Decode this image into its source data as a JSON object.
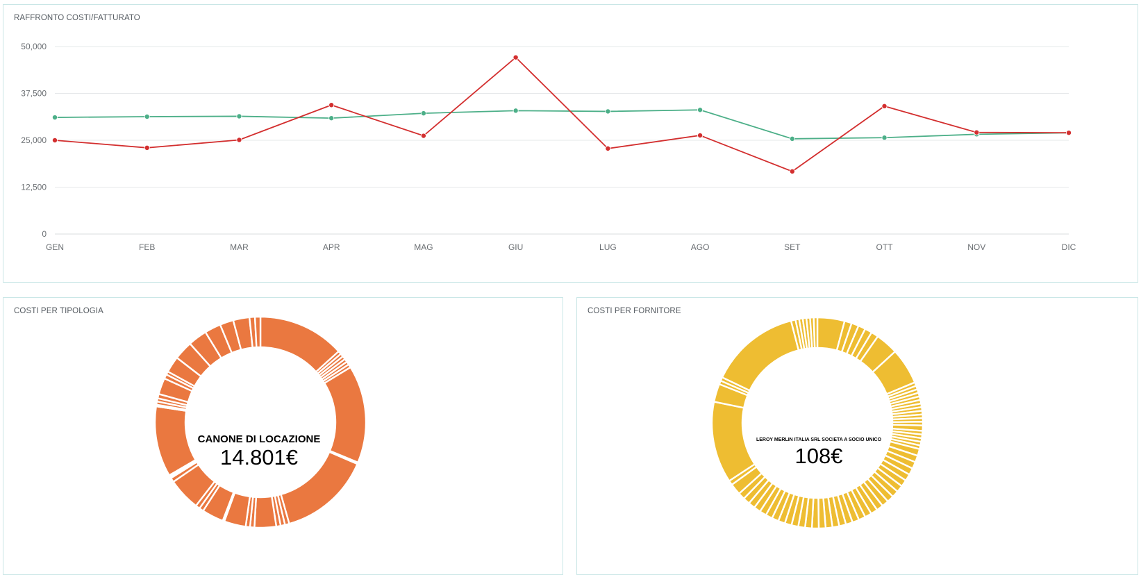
{
  "chart_data": [
    {
      "type": "line",
      "title": "RAFFRONTO COSTI/FATTURATO",
      "categories": [
        "GEN",
        "FEB",
        "MAR",
        "APR",
        "MAG",
        "GIU",
        "LUG",
        "AGO",
        "SET",
        "OTT",
        "NOV",
        "DIC"
      ],
      "y_ticks": [
        "0",
        "12,500",
        "25,000",
        "37,500",
        "50,000"
      ],
      "ylim": [
        0,
        50000
      ],
      "grid": true,
      "series": [
        {
          "color": "#4caf88",
          "values": [
            31100,
            31300,
            31400,
            30900,
            32200,
            32900,
            32700,
            33100,
            25400,
            25700,
            26600,
            27000
          ]
        },
        {
          "color": "#d32f2f",
          "values": [
            25000,
            23000,
            25100,
            34400,
            26200,
            47100,
            22800,
            26300,
            16700,
            34100,
            27100,
            27000
          ]
        }
      ]
    },
    {
      "type": "pie",
      "title": "COSTI PER TIPOLOGIA",
      "donut": true,
      "color": "#ea7840",
      "center_label": "CANONE DI LOCAZIONE",
      "center_value": "14.801€",
      "slice_sizes": [
        16,
        0.6,
        0.6,
        0.6,
        0.6,
        0.6,
        0.6,
        18,
        0.3,
        17,
        0.8,
        0.8,
        0.8,
        4,
        0.8,
        0.8,
        4,
        0.3,
        4,
        0.8,
        0.8,
        6,
        0.8,
        0.3,
        0.3,
        13,
        0.3,
        0.6,
        0.6,
        0.8,
        3,
        0.8,
        0.6,
        3,
        3.5,
        3.5,
        3,
        2.5,
        3,
        1,
        1
      ]
    },
    {
      "type": "pie",
      "title": "COSTI PER FORNITORE",
      "donut": true,
      "color": "#eebd32",
      "center_label": "LEROY MERLIN ITALIA SRL SOCIETA A SOCIO UNICO",
      "center_value": "108€",
      "slice_sizes": [
        6,
        1.6,
        1.6,
        1.6,
        1.6,
        1.6,
        5,
        8,
        0.8,
        0.8,
        0.8,
        0.8,
        0.8,
        0.8,
        0.8,
        0.8,
        0.8,
        0.8,
        0.8,
        0.8,
        1.2,
        0.8,
        0.8,
        0.8,
        0.8,
        0.8,
        1.5,
        1.5,
        1.5,
        1.5,
        1.5,
        1.5,
        1.5,
        1.5,
        1.5,
        1.5,
        1.5,
        1.5,
        1.5,
        1.5,
        1.5,
        1.5,
        1.5,
        1.5,
        1.5,
        1.5,
        1.5,
        1.5,
        1.5,
        1.5,
        1.5,
        1.5,
        1.5,
        1.5,
        1.5,
        1.5,
        1.5,
        1.5,
        1.5,
        2.5,
        1,
        18,
        4,
        0.8,
        0.8,
        20,
        1,
        0.8,
        0.8,
        0.8,
        0.8,
        0.8,
        0.8
      ]
    }
  ]
}
